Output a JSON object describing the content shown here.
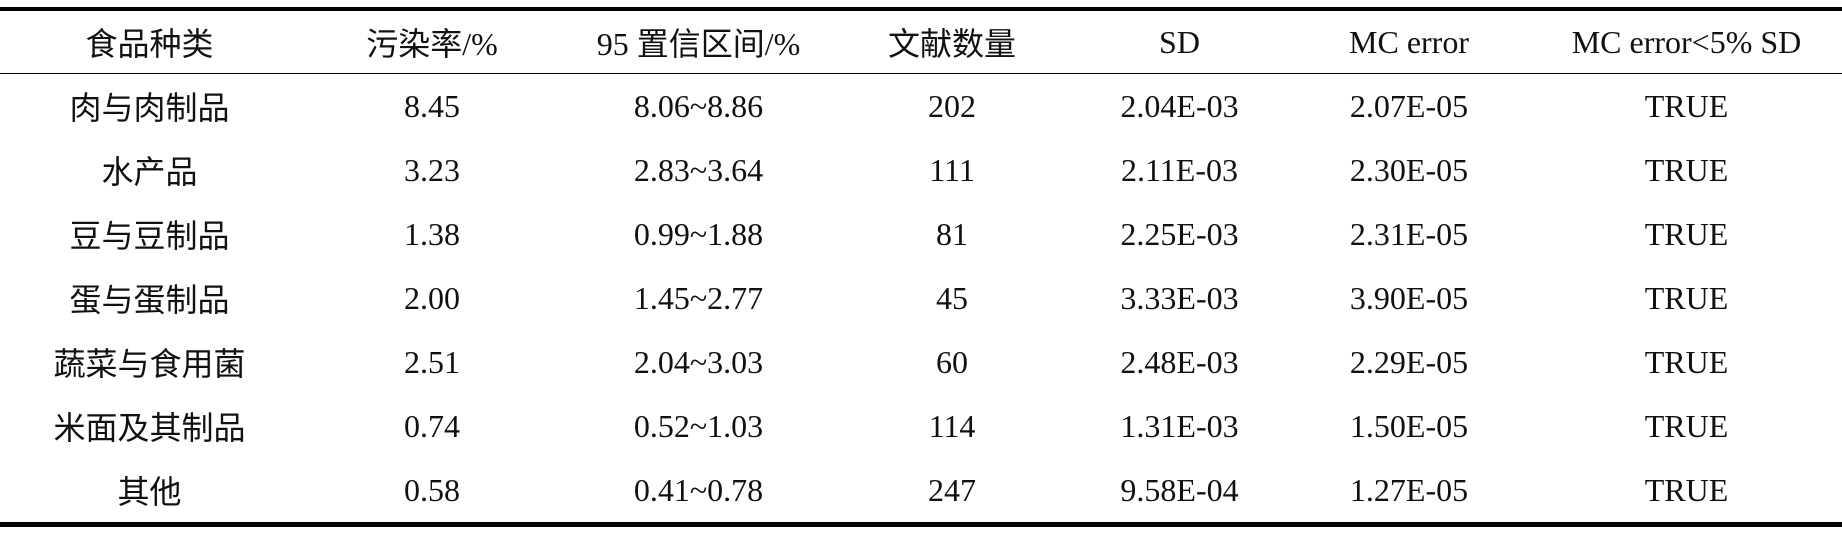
{
  "table": {
    "headers": [
      "食品种类",
      "污染率/%",
      "95 置信区间/%",
      "文献数量",
      "SD",
      "MC error",
      "MC error<5% SD"
    ],
    "rows": [
      [
        "肉与肉制品",
        "8.45",
        "8.06~8.86",
        "202",
        "2.04E-03",
        "2.07E-05",
        "TRUE"
      ],
      [
        "水产品",
        "3.23",
        "2.83~3.64",
        "111",
        "2.11E-03",
        "2.30E-05",
        "TRUE"
      ],
      [
        "豆与豆制品",
        "1.38",
        "0.99~1.88",
        "81",
        "2.25E-03",
        "2.31E-05",
        "TRUE"
      ],
      [
        "蛋与蛋制品",
        "2.00",
        "1.45~2.77",
        "45",
        "3.33E-03",
        "3.90E-05",
        "TRUE"
      ],
      [
        "蔬菜与食用菌",
        "2.51",
        "2.04~3.03",
        "60",
        "2.48E-03",
        "2.29E-05",
        "TRUE"
      ],
      [
        "米面及其制品",
        "0.74",
        "0.52~1.03",
        "114",
        "1.31E-03",
        "1.50E-05",
        "TRUE"
      ],
      [
        "其他",
        "0.58",
        "0.41~0.78",
        "247",
        "9.58E-04",
        "1.27E-05",
        "TRUE"
      ]
    ]
  }
}
